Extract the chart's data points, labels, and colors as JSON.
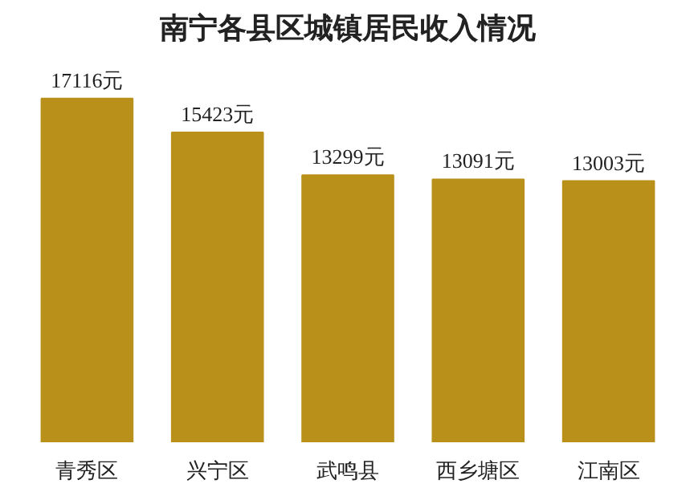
{
  "chart_data": {
    "type": "bar",
    "title": "南宁各县区城镇居民收入情况",
    "categories": [
      "青秀区",
      "兴宁区",
      "武鸣县",
      "西乡塘区",
      "江南区"
    ],
    "values": [
      17116,
      15423,
      13299,
      13091,
      13003
    ],
    "value_labels": [
      "17116元",
      "15423元",
      "13299元",
      "13091元",
      "13003元"
    ],
    "color": "#b8901a",
    "grid": false
  }
}
